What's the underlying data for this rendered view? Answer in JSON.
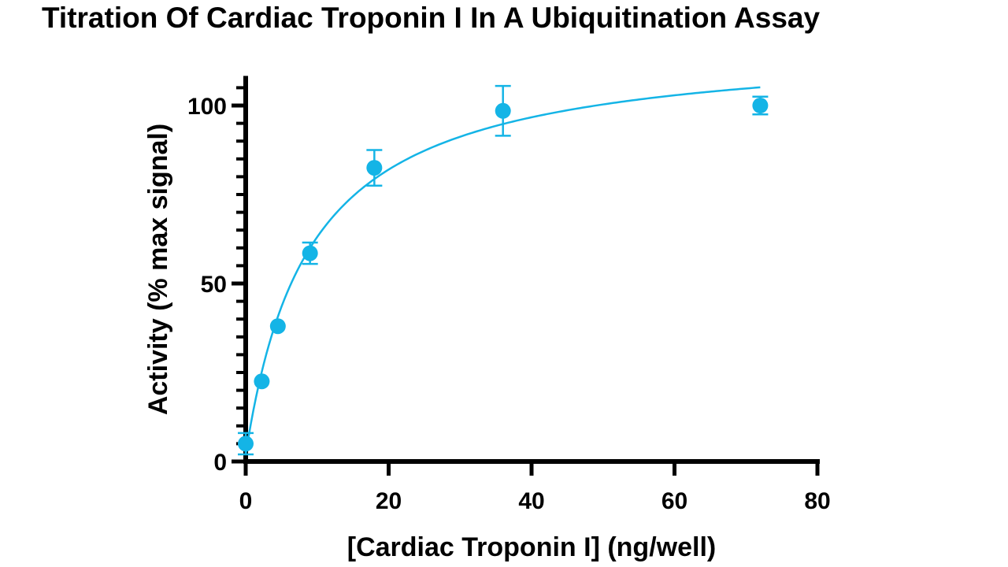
{
  "chart_data": {
    "type": "scatter",
    "title": "Titration Of Cardiac Troponin I In A Ubiquitination Assay",
    "xlabel": "[Cardiac Troponin I] (ng/well)",
    "ylabel": "Activity (% max signal)",
    "xlim": [
      0,
      80
    ],
    "ylim": [
      0,
      107
    ],
    "x_ticks": [
      "0",
      "20",
      "40",
      "60",
      "80"
    ],
    "y_ticks": [
      "0",
      "50",
      "100"
    ],
    "color": "#14b4e6",
    "grid": false,
    "legend": "none",
    "points": [
      {
        "x": 0,
        "y": 5,
        "err": 3
      },
      {
        "x": 2.25,
        "y": 22.5,
        "err": 0
      },
      {
        "x": 4.5,
        "y": 38,
        "err": 0
      },
      {
        "x": 9,
        "y": 58.5,
        "err": 3
      },
      {
        "x": 18,
        "y": 82.5,
        "err": 5
      },
      {
        "x": 36,
        "y": 98.5,
        "err": 7
      },
      {
        "x": 72,
        "y": 100,
        "err": 2.5
      }
    ],
    "fit_curve": {
      "model": "hyperbolic",
      "vmax": 118,
      "k": 9,
      "y0": 2,
      "x_range": [
        0,
        72
      ]
    }
  }
}
